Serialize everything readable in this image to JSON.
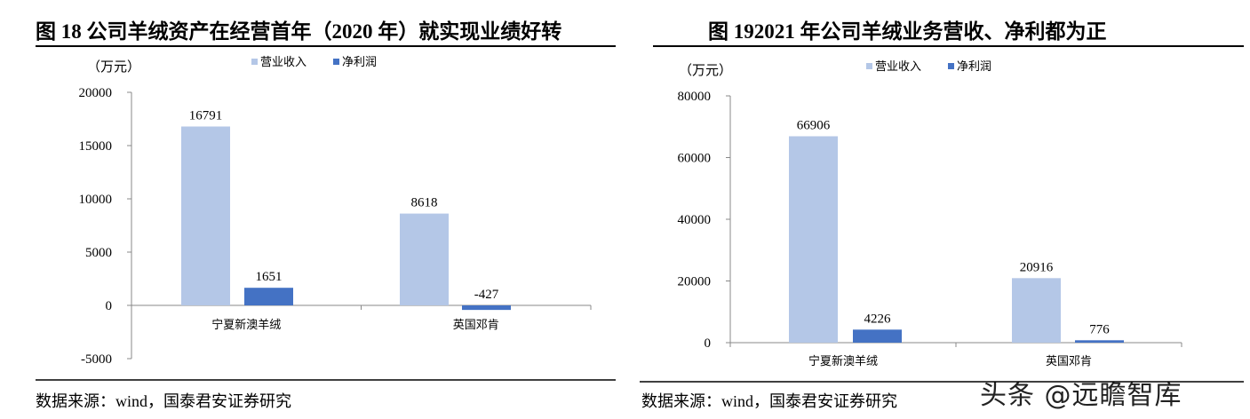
{
  "chart_data": [
    {
      "type": "bar",
      "title": "图 18 公司羊绒资产在经营首年（2020 年）就实现业绩好转",
      "unit": "（万元）",
      "categories": [
        "宁夏新澳羊绒",
        "英国邓肯"
      ],
      "series": [
        {
          "name": "营业收入",
          "color": "#b4c7e7",
          "values": [
            16791,
            8618
          ]
        },
        {
          "name": "净利润",
          "color": "#4472c4",
          "values": [
            1651,
            -427
          ]
        }
      ],
      "ylim": [
        -5000,
        20000
      ],
      "yticks": [
        "20000",
        "15000",
        "10000",
        "5000",
        "0",
        "-5000"
      ],
      "legend": "top",
      "source": "数据来源：wind，国泰君安证券研究"
    },
    {
      "type": "bar",
      "title": "图 192021 年公司羊绒业务营收、净利都为正",
      "unit": "（万元）",
      "categories": [
        "宁夏新澳羊绒",
        "英国邓肯"
      ],
      "series": [
        {
          "name": "营业收入",
          "color": "#b4c7e7",
          "values": [
            66906,
            20916
          ]
        },
        {
          "name": "净利润",
          "color": "#4472c4",
          "values": [
            4226,
            776
          ]
        }
      ],
      "ylim": [
        0,
        80000
      ],
      "yticks": [
        "80000",
        "60000",
        "40000",
        "20000",
        "0"
      ],
      "legend": "top",
      "source": "数据来源：wind，国泰君安证券研究"
    }
  ],
  "watermark": "头条 @远瞻智库"
}
